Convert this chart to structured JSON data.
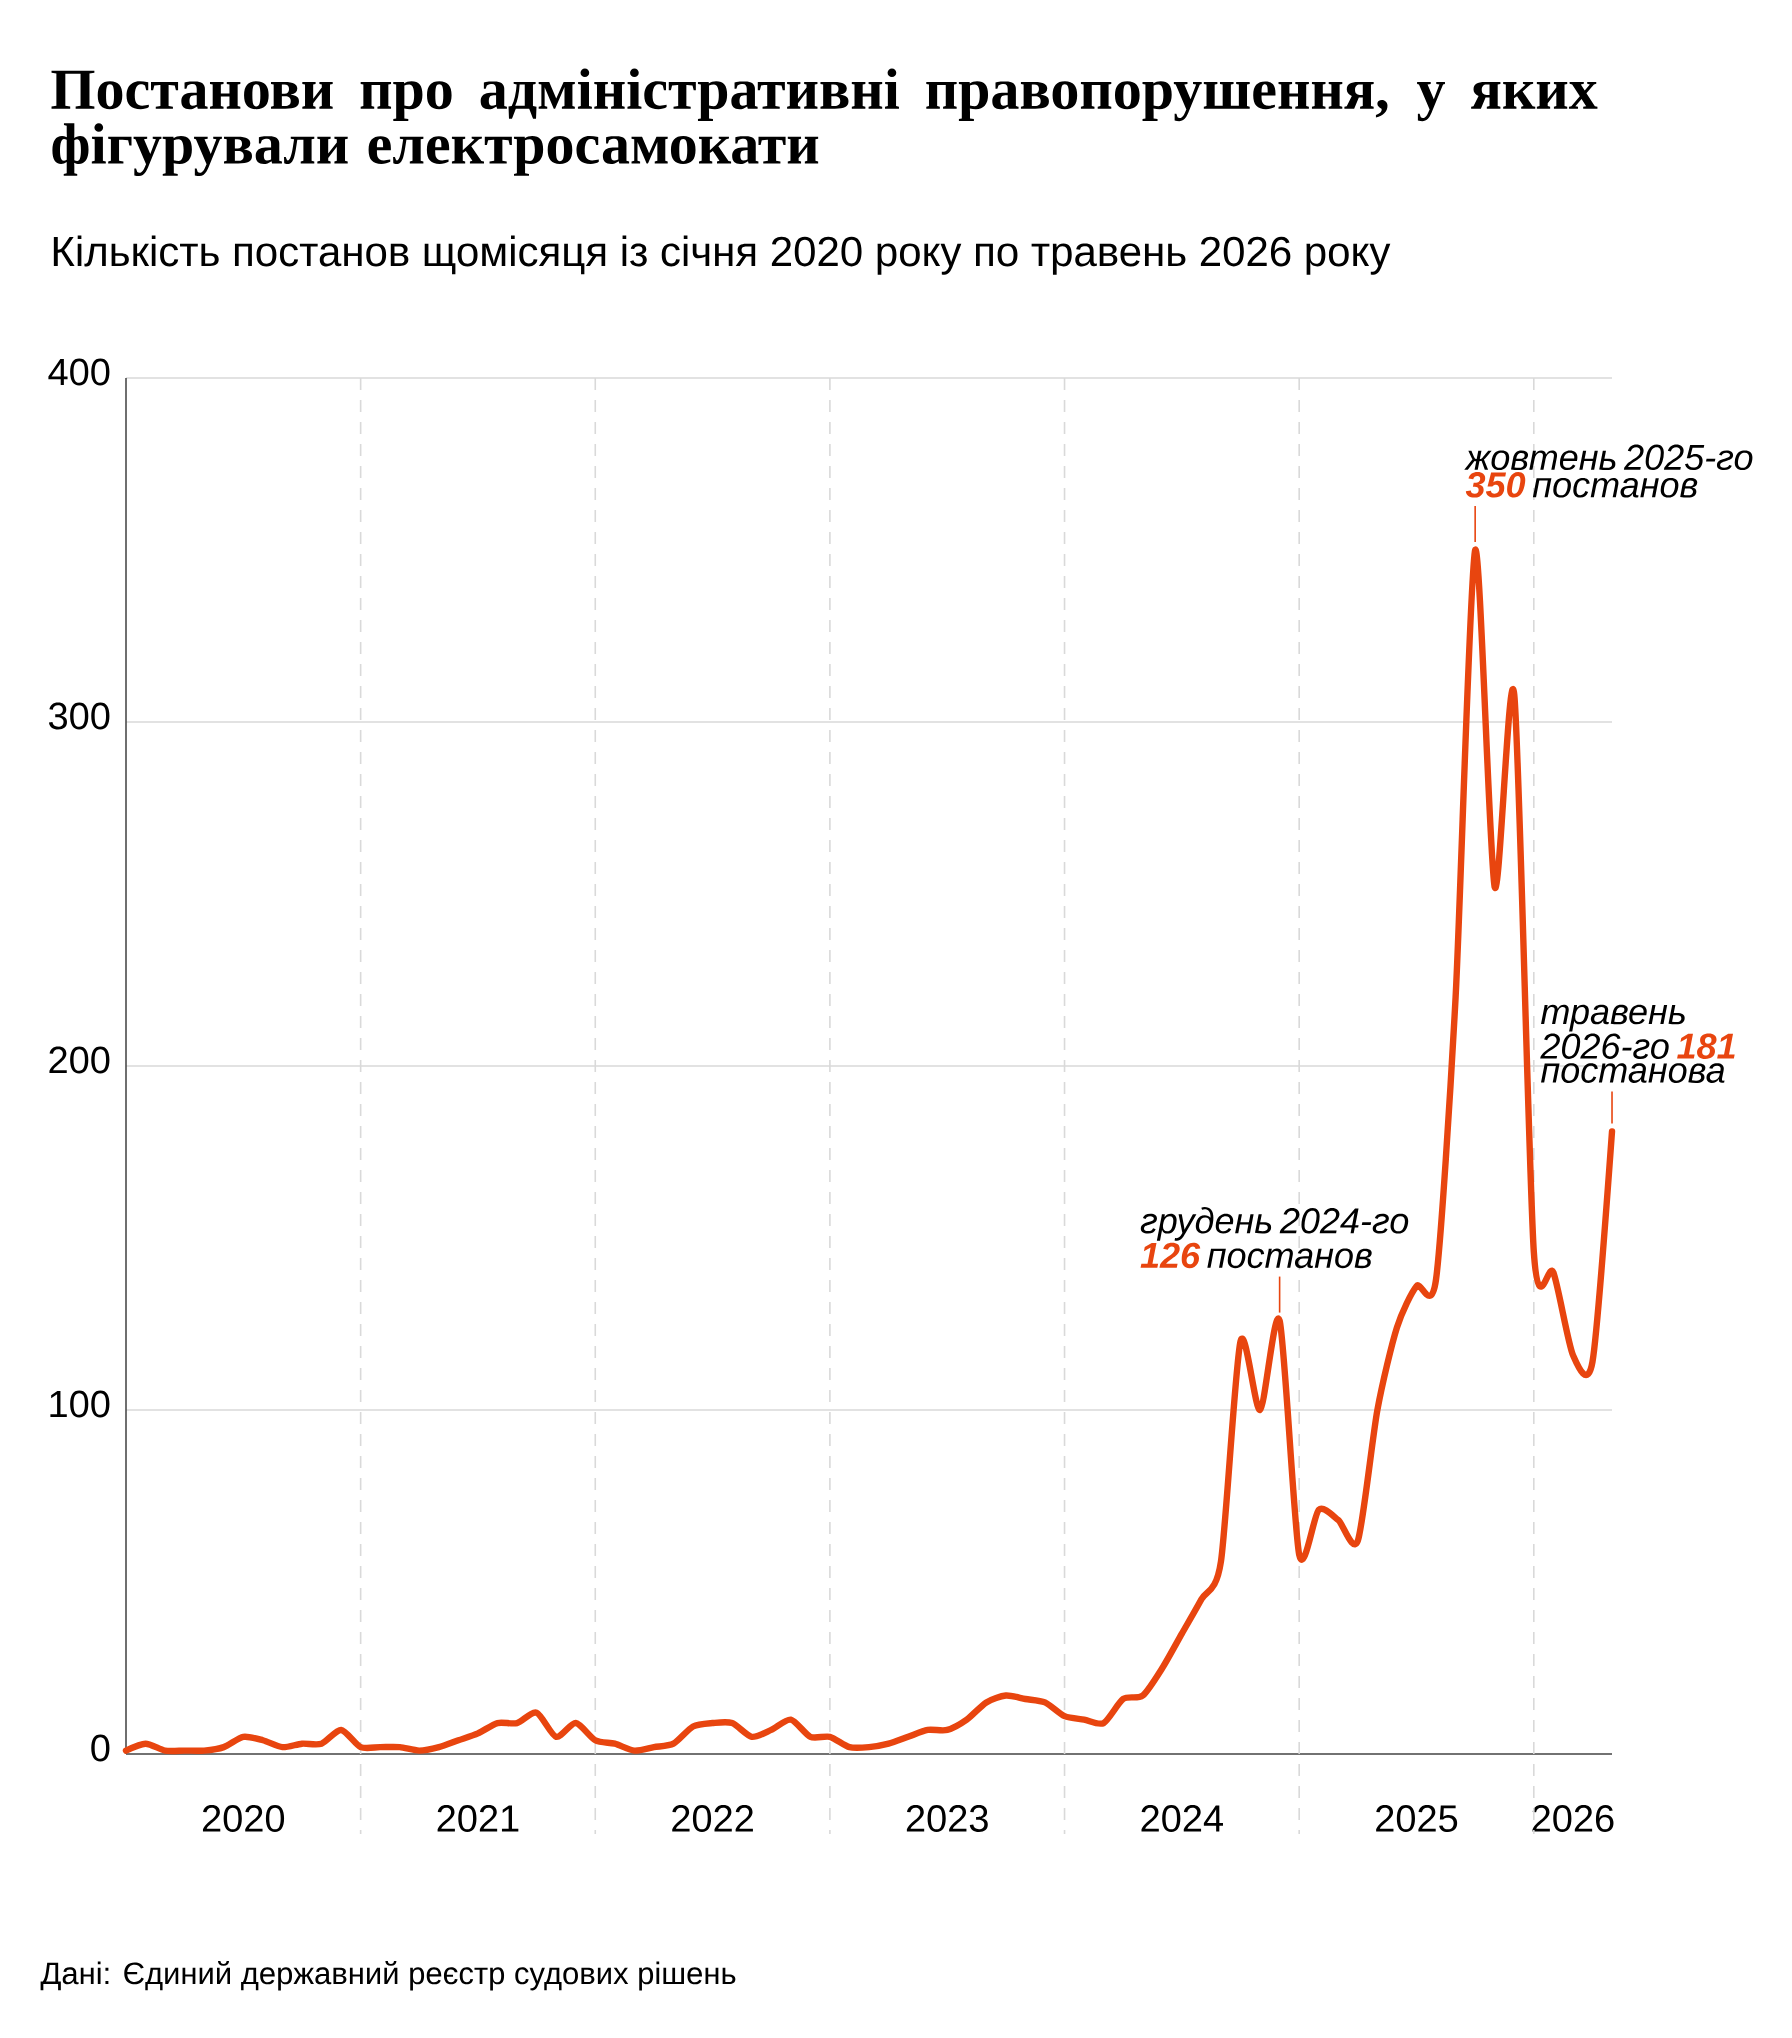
{
  "chart_data": {
    "type": "line",
    "title": "Постанови про адміністративні правопорушення, у яких фігурували електросамокати",
    "subtitle": "Кількість постанов щомісяця із січня 2020 року по травень 2026 року",
    "x": [
      "2020-01",
      "2020-02",
      "2020-03",
      "2020-04",
      "2020-05",
      "2020-06",
      "2020-07",
      "2020-08",
      "2020-09",
      "2020-10",
      "2020-11",
      "2020-12",
      "2021-01",
      "2021-02",
      "2021-03",
      "2021-04",
      "2021-05",
      "2021-06",
      "2021-07",
      "2021-08",
      "2021-09",
      "2021-10",
      "2021-11",
      "2021-12",
      "2022-01",
      "2022-02",
      "2022-03",
      "2022-04",
      "2022-05",
      "2022-06",
      "2022-07",
      "2022-08",
      "2022-09",
      "2022-10",
      "2022-11",
      "2022-12",
      "2023-01",
      "2023-02",
      "2023-03",
      "2023-04",
      "2023-05",
      "2023-06",
      "2023-07",
      "2023-08",
      "2023-09",
      "2023-10",
      "2023-11",
      "2023-12",
      "2024-01",
      "2024-02",
      "2024-03",
      "2024-04",
      "2024-05",
      "2024-06",
      "2024-07",
      "2024-08",
      "2024-09",
      "2024-10",
      "2024-11",
      "2024-12",
      "2025-01",
      "2025-02",
      "2025-03",
      "2025-04",
      "2025-05",
      "2025-06",
      "2025-07",
      "2025-08",
      "2025-09",
      "2025-10",
      "2025-11",
      "2025-12",
      "2026-01",
      "2026-02",
      "2026-03",
      "2026-04",
      "2026-05"
    ],
    "series": [
      {
        "color": "#e8450f",
        "values": [
          1,
          3,
          1,
          1,
          1,
          2,
          5,
          4,
          2,
          3,
          3,
          7,
          2,
          2,
          2,
          1,
          2,
          4,
          6,
          9,
          9,
          12,
          5,
          9,
          4,
          3,
          1,
          2,
          3,
          8,
          9,
          9,
          5,
          7,
          10,
          5,
          5,
          2,
          2,
          3,
          5,
          7,
          7,
          10,
          15,
          17,
          16,
          15,
          11,
          10,
          9,
          16,
          17,
          25,
          35,
          45,
          56,
          120,
          100,
          126,
          58,
          71,
          68,
          62,
          100,
          124,
          136,
          138,
          220,
          350,
          252,
          308,
          146,
          140,
          116,
          114,
          181
        ]
      }
    ],
    "xlim": [
      "2020-01",
      "2026-05"
    ],
    "xticks": [
      {
        "value": "2020-07",
        "label": "2020"
      },
      {
        "value": "2021-07",
        "label": "2021"
      },
      {
        "value": "2022-07",
        "label": "2022"
      },
      {
        "value": "2023-07",
        "label": "2023"
      },
      {
        "value": "2024-07",
        "label": "2024"
      },
      {
        "value": "2025-07",
        "label": "2025"
      },
      {
        "value": "2026-03",
        "label": "2026"
      }
    ],
    "ylim": [
      0,
      400
    ],
    "yticks": [
      0,
      100,
      200,
      300,
      400
    ],
    "grid": "y",
    "ref_lines": [
      {
        "axis": "x",
        "value": "2021-01",
        "line_style": "dashed"
      },
      {
        "axis": "x",
        "value": "2022-01",
        "line_style": "dashed"
      },
      {
        "axis": "x",
        "value": "2023-01",
        "line_style": "dashed"
      },
      {
        "axis": "x",
        "value": "2024-01",
        "line_style": "dashed"
      },
      {
        "axis": "x",
        "value": "2025-01",
        "line_style": "dashed"
      },
      {
        "axis": "x",
        "value": "2026-01",
        "line_style": "dashed"
      }
    ],
    "annotations": [
      {
        "text": "грудень 2024-го **126** постанов",
        "x": "2024-12",
        "y": 126
      },
      {
        "text": "жовтень 2025-го **350** постанов",
        "x": "2025-10",
        "y": 350
      },
      {
        "text": "травень 2026-го **181** постанова",
        "x": "2026-05",
        "y": 181
      },
      "Дані: Єдиний державний реєстр судових рішень"
    ]
  }
}
